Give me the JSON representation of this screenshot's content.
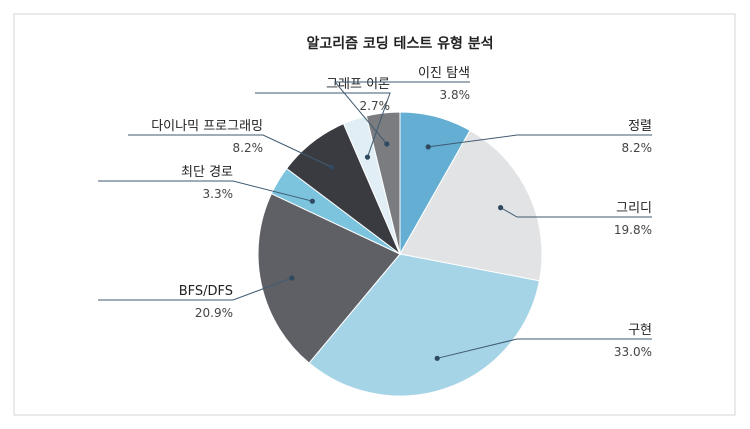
{
  "chart_data": {
    "type": "pie",
    "title": "알고리즘 코딩 테스트 유형 분석",
    "slices": [
      {
        "label": "정렬",
        "value": 8.2,
        "value_label": "8.2%",
        "color": "#63aed2"
      },
      {
        "label": "그리디",
        "value": 19.8,
        "value_label": "19.8%",
        "color": "#e2e3e5"
      },
      {
        "label": "구현",
        "value": 33.0,
        "value_label": "33.0%",
        "color": "#a5d4e6"
      },
      {
        "label": "BFS/DFS",
        "value": 20.9,
        "value_label": "20.9%",
        "color": "#5f6066"
      },
      {
        "label": "최단 경로",
        "value": 3.3,
        "value_label": "3.3%",
        "color": "#7cc3de"
      },
      {
        "label": "다이나믹 프로그래밍",
        "value": 8.2,
        "value_label": "8.2%",
        "color": "#3a3b40"
      },
      {
        "label": "그래프 이론",
        "value": 2.7,
        "value_label": "2.7%",
        "color": "#e1eef5"
      },
      {
        "label": "이진 탐색",
        "value": 3.8,
        "value_label": "3.8%",
        "color": "#7b7c80"
      }
    ]
  }
}
